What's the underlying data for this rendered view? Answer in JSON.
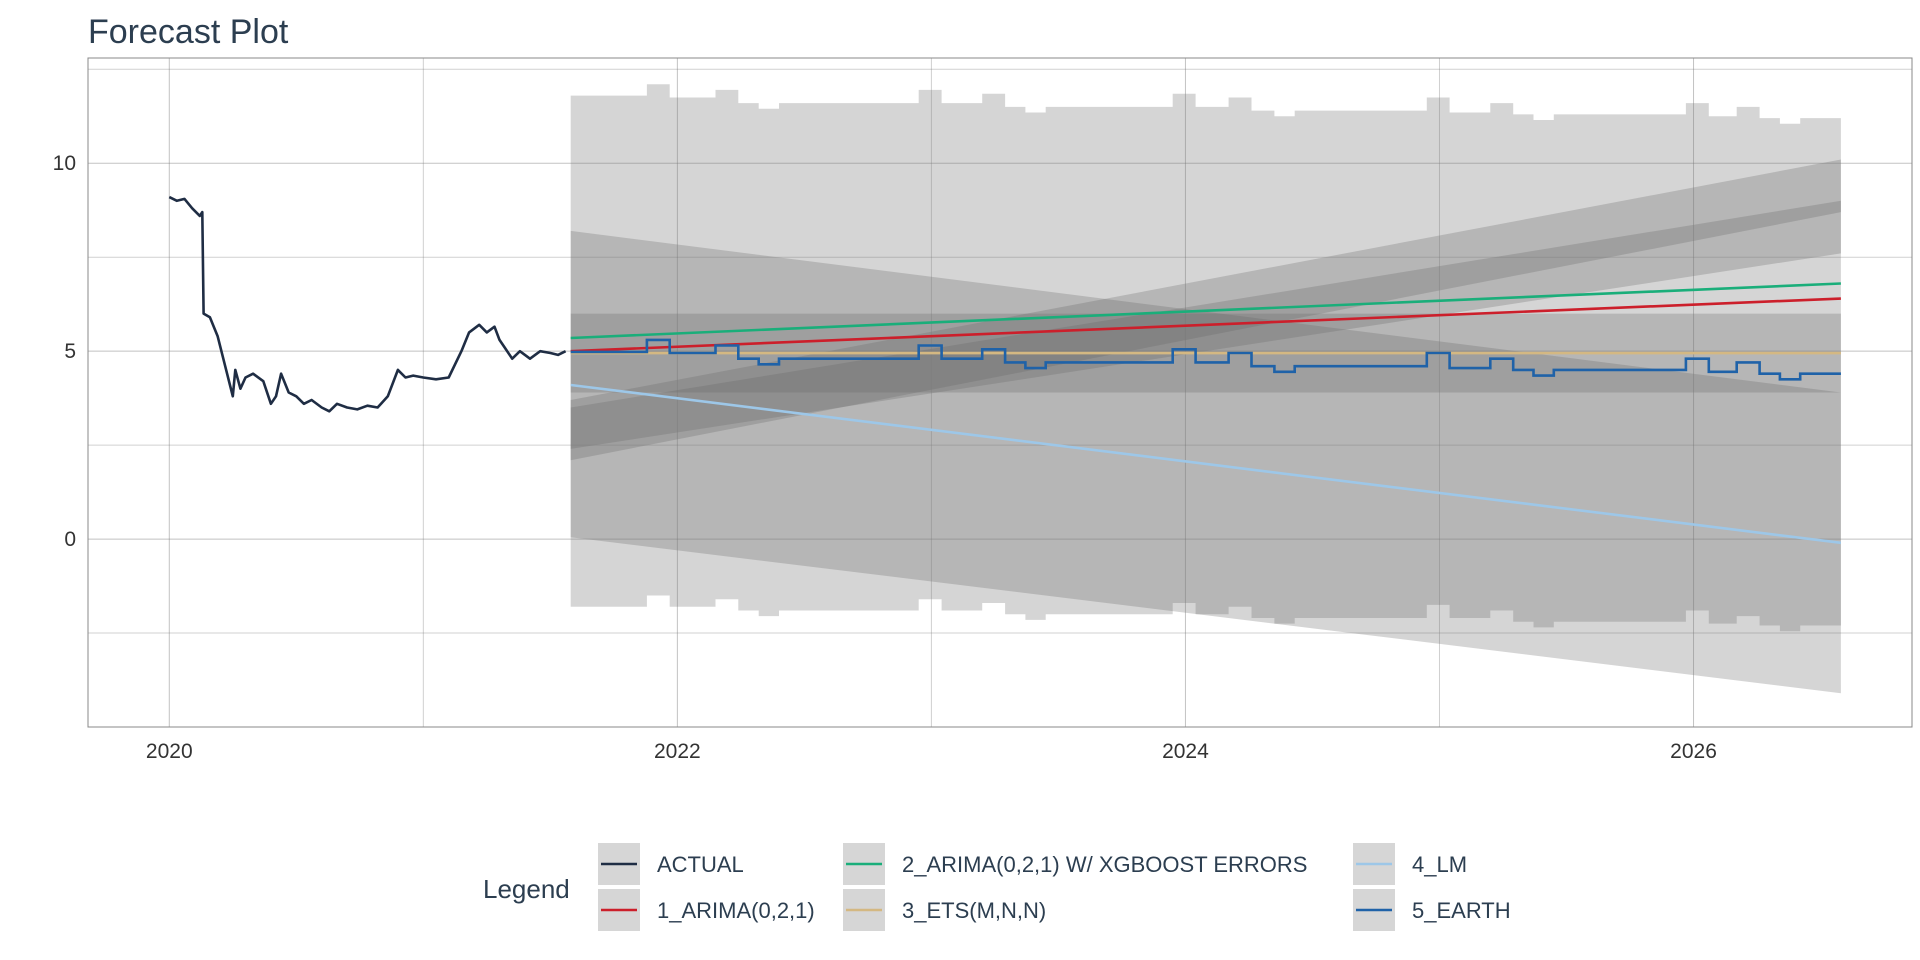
{
  "chart_data": {
    "type": "line",
    "title": "Forecast Plot",
    "xlabel": "",
    "ylabel": "",
    "x_ticks": [
      "2020",
      "2022",
      "2024",
      "2026"
    ],
    "y_ticks": [
      0,
      5,
      10
    ],
    "xlim": [
      2019.68,
      2026.86
    ],
    "ylim": [
      -5.0,
      12.8
    ],
    "grid": true,
    "legend": {
      "title": "Legend",
      "placement": "bottom",
      "entries": [
        {
          "label": "ACTUAL",
          "color": "#1f2d44"
        },
        {
          "label": "1_ARIMA(0,2,1)",
          "color": "#cc1f2b"
        },
        {
          "label": "2_ARIMA(0,2,1) W/ XGBOOST ERRORS",
          "color": "#1aae7a"
        },
        {
          "label": "3_ETS(M,N,N)",
          "color": "#d4b882"
        },
        {
          "label": "4_LM",
          "color": "#9dc7e8"
        },
        {
          "label": "5_EARTH",
          "color": "#1f62a8"
        }
      ]
    },
    "actual": {
      "name": "ACTUAL",
      "color": "#1f2d44",
      "x": [
        2020.0,
        2020.03,
        2020.06,
        2020.09,
        2020.12,
        2020.13,
        2020.135,
        2020.16,
        2020.19,
        2020.22,
        2020.25,
        2020.26,
        2020.28,
        2020.3,
        2020.33,
        2020.37,
        2020.4,
        2020.42,
        2020.44,
        2020.47,
        2020.5,
        2020.53,
        2020.56,
        2020.6,
        2020.63,
        2020.66,
        2020.7,
        2020.74,
        2020.78,
        2020.82,
        2020.86,
        2020.9,
        2020.93,
        2020.96,
        2021.0,
        2021.05,
        2021.1,
        2021.15,
        2021.18,
        2021.22,
        2021.25,
        2021.28,
        2021.3,
        2021.32,
        2021.35,
        2021.38,
        2021.42,
        2021.46,
        2021.5,
        2021.53,
        2021.56
      ],
      "y": [
        9.1,
        9.0,
        9.05,
        8.8,
        8.6,
        8.7,
        6.0,
        5.9,
        5.4,
        4.6,
        3.8,
        4.5,
        4.0,
        4.3,
        4.4,
        4.2,
        3.6,
        3.8,
        4.4,
        3.9,
        3.8,
        3.6,
        3.7,
        3.5,
        3.4,
        3.6,
        3.5,
        3.45,
        3.55,
        3.5,
        3.8,
        4.5,
        4.3,
        4.35,
        4.3,
        4.25,
        4.3,
        5.0,
        5.5,
        5.7,
        5.5,
        5.65,
        5.3,
        5.1,
        4.8,
        5.0,
        4.8,
        5.0,
        4.95,
        4.9,
        5.0
      ]
    },
    "forecast_start": 2021.58,
    "forecast_end": 2026.58,
    "series": [
      {
        "name": "1_ARIMA(0,2,1)",
        "color": "#cc1f2b",
        "style": "linear",
        "y_start": 5.0,
        "y_end": 6.4,
        "band": [
          [
            2.4,
            7.6
          ],
          [
            3.5,
            9.0
          ]
        ]
      },
      {
        "name": "2_ARIMA(0,2,1) W/ XGBOOST ERRORS",
        "color": "#1aae7a",
        "style": "linear",
        "y_start": 5.35,
        "y_end": 6.8,
        "band": [
          [
            2.1,
            8.7
          ],
          [
            3.7,
            10.1
          ]
        ]
      },
      {
        "name": "3_ETS(M,N,N)",
        "color": "#d4b882",
        "style": "linear",
        "y_start": 4.95,
        "y_end": 4.95,
        "band": [
          [
            3.9,
            3.9
          ],
          [
            6.0,
            6.0
          ]
        ]
      },
      {
        "name": "4_LM",
        "color": "#9dc7e8",
        "style": "linear",
        "y_start": 4.1,
        "y_end": -0.1,
        "band": [
          [
            0.05,
            -4.1
          ],
          [
            8.2,
            3.9
          ]
        ]
      },
      {
        "name": "5_EARTH",
        "color": "#1f62a8",
        "style": "step",
        "x": [
          2021.58,
          2021.88,
          2021.97,
          2022.15,
          2022.24,
          2022.32,
          2022.4,
          2022.95,
          2023.04,
          2023.2,
          2023.29,
          2023.37,
          2023.45,
          2023.95,
          2024.04,
          2024.17,
          2024.26,
          2024.35,
          2024.43,
          2024.95,
          2025.04,
          2025.2,
          2025.29,
          2025.37,
          2025.45,
          2025.97,
          2026.06,
          2026.17,
          2026.26,
          2026.34,
          2026.42,
          2026.5,
          2026.58
        ],
        "y": [
          4.98,
          5.3,
          4.95,
          5.15,
          4.8,
          4.65,
          4.8,
          5.15,
          4.8,
          5.05,
          4.7,
          4.55,
          4.7,
          5.05,
          4.7,
          4.95,
          4.6,
          4.45,
          4.6,
          4.95,
          4.55,
          4.8,
          4.5,
          4.35,
          4.5,
          4.8,
          4.45,
          4.7,
          4.4,
          4.25,
          4.4,
          4.4,
          4.4
        ],
        "lower": [
          -1.8,
          -1.5,
          -1.8,
          -1.6,
          -1.9,
          -2.05,
          -1.9,
          -1.6,
          -1.9,
          -1.7,
          -2.0,
          -2.15,
          -2.0,
          -1.7,
          -2.0,
          -1.8,
          -2.1,
          -2.25,
          -2.1,
          -1.75,
          -2.1,
          -1.9,
          -2.2,
          -2.35,
          -2.2,
          -1.9,
          -2.25,
          -2.05,
          -2.3,
          -2.45,
          -2.3,
          -2.3,
          -2.3
        ],
        "upper": [
          11.8,
          12.1,
          11.75,
          11.95,
          11.6,
          11.45,
          11.6,
          11.95,
          11.6,
          11.85,
          11.5,
          11.35,
          11.5,
          11.85,
          11.5,
          11.75,
          11.4,
          11.25,
          11.4,
          11.75,
          11.35,
          11.6,
          11.3,
          11.15,
          11.3,
          11.6,
          11.25,
          11.5,
          11.2,
          11.05,
          11.2,
          11.2,
          11.2
        ]
      }
    ]
  }
}
